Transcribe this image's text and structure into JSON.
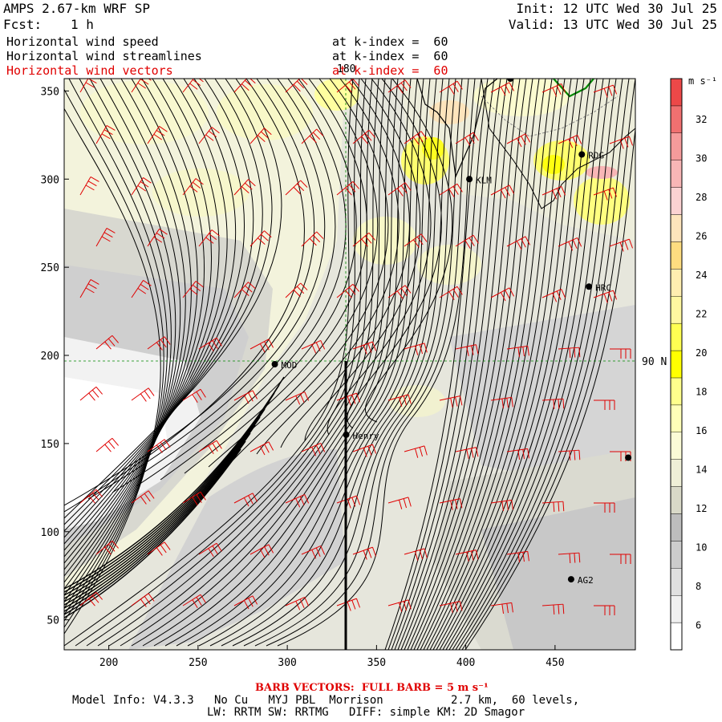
{
  "header": {
    "model": "AMPS 2.67-km WRF SP",
    "fcst_label": "Fcst:",
    "fcst_value": "1 h",
    "init": "Init: 12 UTC Wed 30 Jul 25",
    "valid": "Valid: 13 UTC Wed 30 Jul 25"
  },
  "fields": [
    {
      "name": "Horizontal wind speed",
      "level": "at k-index =  60",
      "color": "#000000"
    },
    {
      "name": "Horizontal wind streamlines",
      "level": "at k-index =  60",
      "color": "#000000"
    },
    {
      "name": "Horizontal wind vectors",
      "level": "at k-index =  60",
      "color": "#e00000"
    }
  ],
  "footer": {
    "barb": "BARB VECTORS:  FULL BARB = 5 m s⁻¹",
    "model_info": "Model Info: V4.3.3   No Cu   MYJ PBL  Morrison          2.7 km,  60 levels,",
    "physics": "LW: RRTM SW: RRTMG   DIFF: simple KM: 2D Smagor"
  },
  "map_labels": {
    "meridian": "180",
    "parallel": "90 N"
  },
  "stations": [
    {
      "name": "RDG",
      "x": 465,
      "y": 314
    },
    {
      "name": "KLM",
      "x": 402,
      "y": 300
    },
    {
      "name": "HRC",
      "x": 469,
      "y": 239
    },
    {
      "name": "MOD",
      "x": 293,
      "y": 195
    },
    {
      "name": "Henry",
      "x": 333,
      "y": 155
    },
    {
      "name": "AG2",
      "x": 459,
      "y": 73
    },
    {
      "name": "",
      "x": 425,
      "y": 357
    },
    {
      "name": "",
      "x": 491,
      "y": 142
    }
  ],
  "colorbar": {
    "unit": "m s⁻¹",
    "ticks": [
      "32",
      "30",
      "28",
      "26",
      "24",
      "22",
      "20",
      "18",
      "16",
      "14",
      "12",
      "10",
      "8",
      "6"
    ],
    "bands": [
      "#ffffff",
      "#f0f0f0",
      "#e0e0e0",
      "#cccccc",
      "#bdbdbd",
      "#d9d9c8",
      "#efefd7",
      "#fbfbd6",
      "#ffffb8",
      "#ffff8c",
      "#ffff00",
      "#ffff52",
      "#fff7a0",
      "#ffeeb0",
      "#fedd80",
      "#fde4bc",
      "#fbd2d2",
      "#f8b6b6",
      "#f59b9b",
      "#f07070",
      "#ec4848"
    ]
  },
  "chart_data": {
    "type": "streamline map",
    "xlim": [
      175,
      495
    ],
    "ylim": [
      33,
      357
    ],
    "x_ticks": [
      200,
      250,
      300,
      350,
      400,
      450
    ],
    "y_ticks": [
      50,
      100,
      150,
      200,
      250,
      300,
      350
    ],
    "meridian_x": 334,
    "parallel_y": 195,
    "cross_section_x": 334
  }
}
